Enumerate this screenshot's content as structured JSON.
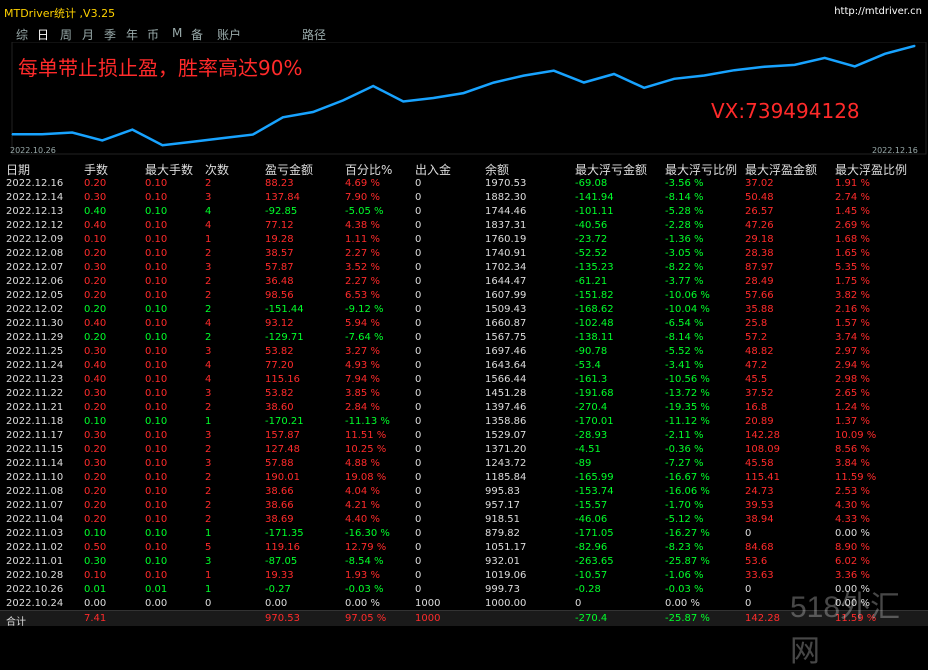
{
  "window": {
    "title": "MTDriver统计 ,V3.25",
    "url": "http://mtdriver.cn"
  },
  "tabs": [
    {
      "label": "综"
    },
    {
      "label": "日"
    },
    {
      "label": "周"
    },
    {
      "label": "月"
    },
    {
      "label": "季"
    },
    {
      "label": "年"
    },
    {
      "label": "币"
    },
    {
      "label": "M"
    },
    {
      "label": "备"
    },
    {
      "label": "账户"
    },
    {
      "label": "路径"
    }
  ],
  "active_tab": "日",
  "chart_overlay": {
    "title": "每单带止损止盈，胜率高达90%",
    "contact": "VX:739494128"
  },
  "chart_dates": {
    "start": "2022.10.26",
    "end": "2022.12.16"
  },
  "colors": {
    "line": "#18a3ff",
    "positive": "#ff2b2b",
    "negative": "#00ff2a",
    "accent": "#ffd200"
  },
  "table": {
    "headers": [
      "日期",
      "手数",
      "最大手数",
      "次数",
      "盈亏金额",
      "百分比%",
      "出入金",
      "余额",
      "最大浮亏金额",
      "最大浮亏比例",
      "最大浮盈金额",
      "最大浮盈比例"
    ],
    "rows": [
      [
        "2022.12.16",
        "0.20",
        "0.10",
        "2",
        "88.23",
        "4.69 %",
        "0",
        "1970.53",
        "-69.08",
        "-3.56 %",
        "37.02",
        "1.91 %"
      ],
      [
        "2022.12.14",
        "0.30",
        "0.10",
        "3",
        "137.84",
        "7.90 %",
        "0",
        "1882.30",
        "-141.94",
        "-8.14 %",
        "50.48",
        "2.74 %"
      ],
      [
        "2022.12.13",
        "0.40",
        "0.10",
        "4",
        "-92.85",
        "-5.05 %",
        "0",
        "1744.46",
        "-101.11",
        "-5.28 %",
        "26.57",
        "1.45 %"
      ],
      [
        "2022.12.12",
        "0.40",
        "0.10",
        "4",
        "77.12",
        "4.38 %",
        "0",
        "1837.31",
        "-40.56",
        "-2.28 %",
        "47.26",
        "2.69 %"
      ],
      [
        "2022.12.09",
        "0.10",
        "0.10",
        "1",
        "19.28",
        "1.11 %",
        "0",
        "1760.19",
        "-23.72",
        "-1.36 %",
        "29.18",
        "1.68 %"
      ],
      [
        "2022.12.08",
        "0.20",
        "0.10",
        "2",
        "38.57",
        "2.27 %",
        "0",
        "1740.91",
        "-52.52",
        "-3.05 %",
        "28.38",
        "1.65 %"
      ],
      [
        "2022.12.07",
        "0.30",
        "0.10",
        "3",
        "57.87",
        "3.52 %",
        "0",
        "1702.34",
        "-135.23",
        "-8.22 %",
        "87.97",
        "5.35 %"
      ],
      [
        "2022.12.06",
        "0.20",
        "0.10",
        "2",
        "36.48",
        "2.27 %",
        "0",
        "1644.47",
        "-61.21",
        "-3.77 %",
        "28.49",
        "1.75 %"
      ],
      [
        "2022.12.05",
        "0.20",
        "0.10",
        "2",
        "98.56",
        "6.53 %",
        "0",
        "1607.99",
        "-151.82",
        "-10.06 %",
        "57.66",
        "3.82 %"
      ],
      [
        "2022.12.02",
        "0.20",
        "0.10",
        "2",
        "-151.44",
        "-9.12 %",
        "0",
        "1509.43",
        "-168.62",
        "-10.04 %",
        "35.88",
        "2.16 %"
      ],
      [
        "2022.11.30",
        "0.40",
        "0.10",
        "4",
        "93.12",
        "5.94 %",
        "0",
        "1660.87",
        "-102.48",
        "-6.54 %",
        "25.8",
        "1.57 %"
      ],
      [
        "2022.11.29",
        "0.20",
        "0.10",
        "2",
        "-129.71",
        "-7.64 %",
        "0",
        "1567.75",
        "-138.11",
        "-8.14 %",
        "57.2",
        "3.74 %"
      ],
      [
        "2022.11.25",
        "0.30",
        "0.10",
        "3",
        "53.82",
        "3.27 %",
        "0",
        "1697.46",
        "-90.78",
        "-5.52 %",
        "48.82",
        "2.97 %"
      ],
      [
        "2022.11.24",
        "0.40",
        "0.10",
        "4",
        "77.20",
        "4.93 %",
        "0",
        "1643.64",
        "-53.4",
        "-3.41 %",
        "47.2",
        "2.94 %"
      ],
      [
        "2022.11.23",
        "0.40",
        "0.10",
        "4",
        "115.16",
        "7.94 %",
        "0",
        "1566.44",
        "-161.3",
        "-10.56 %",
        "45.5",
        "2.98 %"
      ],
      [
        "2022.11.22",
        "0.30",
        "0.10",
        "3",
        "53.82",
        "3.85 %",
        "0",
        "1451.28",
        "-191.68",
        "-13.72 %",
        "37.52",
        "2.65 %"
      ],
      [
        "2022.11.21",
        "0.20",
        "0.10",
        "2",
        "38.60",
        "2.84 %",
        "0",
        "1397.46",
        "-270.4",
        "-19.35 %",
        "16.8",
        "1.24 %"
      ],
      [
        "2022.11.18",
        "0.10",
        "0.10",
        "1",
        "-170.21",
        "-11.13 %",
        "0",
        "1358.86",
        "-170.01",
        "-11.12 %",
        "20.89",
        "1.37 %"
      ],
      [
        "2022.11.17",
        "0.30",
        "0.10",
        "3",
        "157.87",
        "11.51 %",
        "0",
        "1529.07",
        "-28.93",
        "-2.11 %",
        "142.28",
        "10.09 %"
      ],
      [
        "2022.11.15",
        "0.20",
        "0.10",
        "2",
        "127.48",
        "10.25 %",
        "0",
        "1371.20",
        "-4.51",
        "-0.36 %",
        "108.09",
        "8.56 %"
      ],
      [
        "2022.11.14",
        "0.30",
        "0.10",
        "3",
        "57.88",
        "4.88 %",
        "0",
        "1243.72",
        "-89",
        "-7.27 %",
        "45.58",
        "3.84 %"
      ],
      [
        "2022.11.10",
        "0.20",
        "0.10",
        "2",
        "190.01",
        "19.08 %",
        "0",
        "1185.84",
        "-165.99",
        "-16.67 %",
        "115.41",
        "11.59 %"
      ],
      [
        "2022.11.08",
        "0.20",
        "0.10",
        "2",
        "38.66",
        "4.04 %",
        "0",
        "995.83",
        "-153.74",
        "-16.06 %",
        "24.73",
        "2.53 %"
      ],
      [
        "2022.11.07",
        "0.20",
        "0.10",
        "2",
        "38.66",
        "4.21 %",
        "0",
        "957.17",
        "-15.57",
        "-1.70 %",
        "39.53",
        "4.30 %"
      ],
      [
        "2022.11.04",
        "0.20",
        "0.10",
        "2",
        "38.69",
        "4.40 %",
        "0",
        "918.51",
        "-46.06",
        "-5.12 %",
        "38.94",
        "4.33 %"
      ],
      [
        "2022.11.03",
        "0.10",
        "0.10",
        "1",
        "-171.35",
        "-16.30 %",
        "0",
        "879.82",
        "-171.05",
        "-16.27 %",
        "0",
        "0.00 %"
      ],
      [
        "2022.11.02",
        "0.50",
        "0.10",
        "5",
        "119.16",
        "12.79 %",
        "0",
        "1051.17",
        "-82.96",
        "-8.23 %",
        "84.68",
        "8.90 %"
      ],
      [
        "2022.11.01",
        "0.30",
        "0.10",
        "3",
        "-87.05",
        "-8.54 %",
        "0",
        "932.01",
        "-263.65",
        "-25.87 %",
        "53.6",
        "6.02 %"
      ],
      [
        "2022.10.28",
        "0.10",
        "0.10",
        "1",
        "19.33",
        "1.93 %",
        "0",
        "1019.06",
        "-10.57",
        "-1.06 %",
        "33.63",
        "3.36 %"
      ],
      [
        "2022.10.26",
        "0.01",
        "0.01",
        "1",
        "-0.27",
        "-0.03 %",
        "0",
        "999.73",
        "-0.28",
        "-0.03 %",
        "0",
        "0.00 %"
      ],
      [
        "2022.10.24",
        "0.00",
        "0.00",
        "0",
        "0.00",
        "0.00 %",
        "1000",
        "1000.00",
        "0",
        "0.00 %",
        "0",
        "0.00 %"
      ]
    ],
    "footer": [
      "合计",
      "7.41",
      "",
      "",
      "970.53",
      "97.05 %",
      "1000",
      "",
      "-270.4",
      "-25.87 %",
      "142.28",
      "11.59 %"
    ]
  },
  "watermark": "518外汇网",
  "chart_data": {
    "type": "line",
    "title": "",
    "xlabel": "",
    "ylabel": "",
    "x": [
      "2022.10.24",
      "2022.10.26",
      "2022.10.28",
      "2022.11.01",
      "2022.11.02",
      "2022.11.03",
      "2022.11.04",
      "2022.11.07",
      "2022.11.08",
      "2022.11.10",
      "2022.11.14",
      "2022.11.15",
      "2022.11.17",
      "2022.11.18",
      "2022.11.21",
      "2022.11.22",
      "2022.11.23",
      "2022.11.24",
      "2022.11.25",
      "2022.11.29",
      "2022.11.30",
      "2022.12.02",
      "2022.12.05",
      "2022.12.06",
      "2022.12.07",
      "2022.12.08",
      "2022.12.09",
      "2022.12.12",
      "2022.12.13",
      "2022.12.14",
      "2022.12.16"
    ],
    "series": [
      {
        "values": [
          1000.0,
          999.73,
          1019.06,
          932.01,
          1051.17,
          879.82,
          918.51,
          957.17,
          995.83,
          1185.84,
          1243.72,
          1371.2,
          1529.07,
          1358.86,
          1397.46,
          1451.28,
          1566.44,
          1643.64,
          1697.46,
          1567.75,
          1660.87,
          1509.43,
          1607.99,
          1644.47,
          1702.34,
          1740.91,
          1760.19,
          1837.31,
          1744.46,
          1882.3,
          1970.53
        ]
      }
    ],
    "ylim": [
      860,
      1990
    ]
  }
}
